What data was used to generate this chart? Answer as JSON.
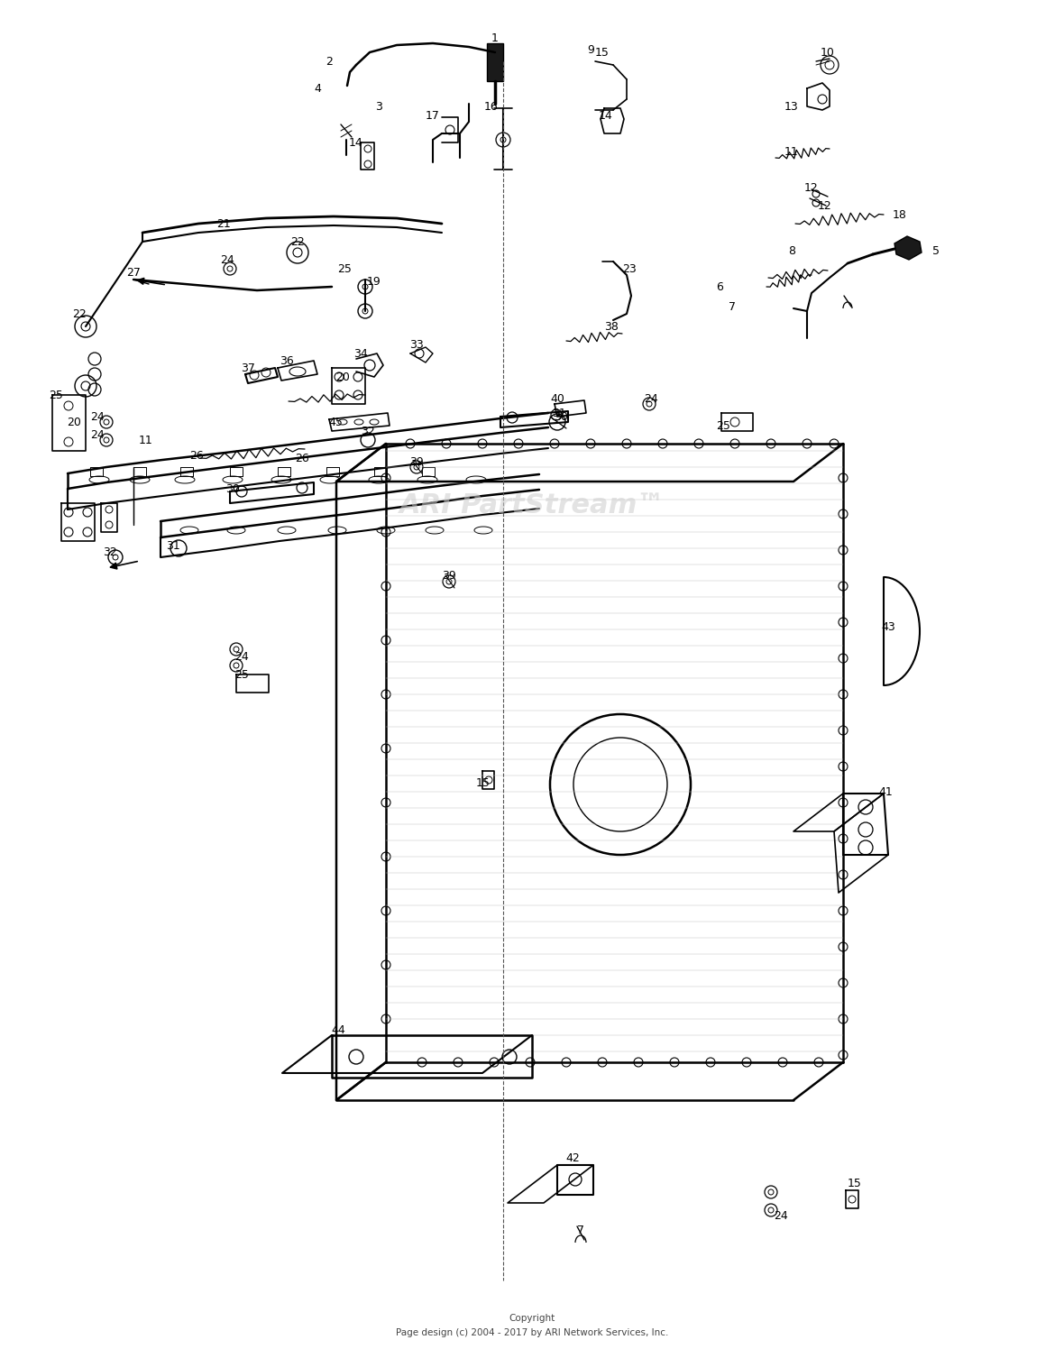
{
  "copyright_line1": "Copyright",
  "copyright_line2": "Page design (c) 2004 - 2017 by ARI Network Services, Inc.",
  "watermark": "ARI PartStream™",
  "bg_color": "#ffffff",
  "fig_width": 11.8,
  "fig_height": 14.96,
  "dpi": 100
}
